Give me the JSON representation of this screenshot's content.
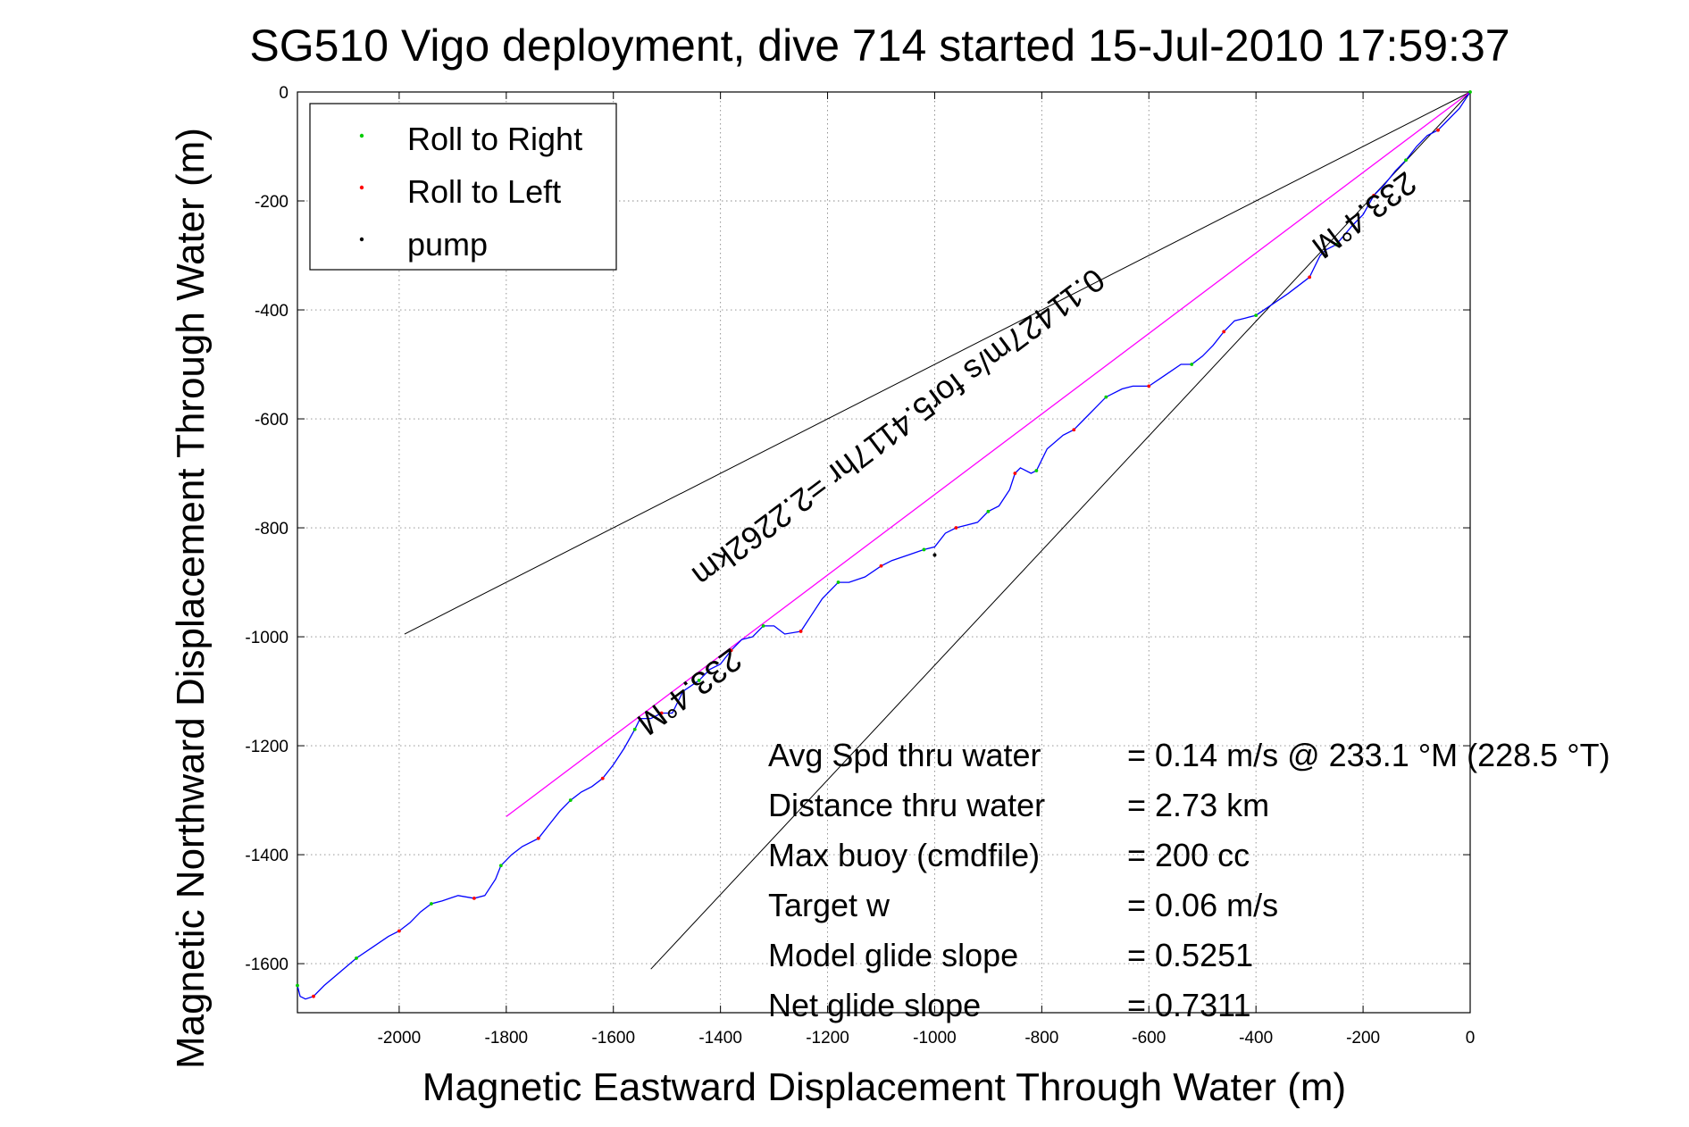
{
  "chart_data": {
    "type": "line",
    "title": "SG510 Vigo deployment, dive 714 started 15-Jul-2010 17:59:37",
    "xlabel": "Magnetic Eastward Displacement Through Water (m)",
    "ylabel": "Magnetic Northward Displacement Through Water (m)",
    "xlim": [
      -2190,
      0
    ],
    "ylim": [
      -1690,
      0
    ],
    "x_ticks": [
      "-2000",
      "-1800",
      "-1600",
      "-1400",
      "-1200",
      "-1000",
      "-800",
      "-600",
      "-400",
      "-200",
      "0"
    ],
    "y_ticks": [
      "0",
      "-200",
      "-400",
      "-600",
      "-800",
      "-1000",
      "-1200",
      "-1400",
      "-1600"
    ],
    "x_tick_values": [
      -2000,
      -1800,
      -1600,
      -1400,
      -1200,
      -1000,
      -800,
      -600,
      -400,
      -200,
      0
    ],
    "y_tick_values": [
      0,
      -200,
      -400,
      -600,
      -800,
      -1000,
      -1200,
      -1400,
      -1600
    ],
    "grid": true,
    "legend_position": "top-left",
    "legend": [
      {
        "label": "Roll to Right",
        "color": "#00cc00"
      },
      {
        "label": "Roll to Left",
        "color": "#ff0000"
      },
      {
        "label": "pump",
        "color": "#000000"
      }
    ],
    "track": {
      "color": "#0000ff",
      "x": [
        -2190,
        -2185,
        -2175,
        -2160,
        -2140,
        -2110,
        -2080,
        -2050,
        -2020,
        -2000,
        -1980,
        -1960,
        -1940,
        -1920,
        -1890,
        -1860,
        -1840,
        -1820,
        -1810,
        -1790,
        -1770,
        -1740,
        -1720,
        -1700,
        -1680,
        -1660,
        -1640,
        -1620,
        -1600,
        -1580,
        -1560,
        -1550,
        -1530,
        -1510,
        -1490,
        -1470,
        -1440,
        -1420,
        -1400,
        -1380,
        -1360,
        -1340,
        -1320,
        -1300,
        -1280,
        -1250,
        -1230,
        -1210,
        -1180,
        -1160,
        -1130,
        -1100,
        -1080,
        -1050,
        -1020,
        -1000,
        -980,
        -960,
        -940,
        -920,
        -900,
        -880,
        -860,
        -850,
        -840,
        -820,
        -810,
        -790,
        -760,
        -740,
        -720,
        -700,
        -680,
        -650,
        -630,
        -600,
        -570,
        -540,
        -520,
        -500,
        -480,
        -460,
        -440,
        -420,
        -400,
        -370,
        -340,
        -300,
        -280,
        -270,
        -250,
        -220,
        -200,
        -180,
        -160,
        -140,
        -120,
        -100,
        -80,
        -60,
        -40,
        -20,
        0
      ],
      "y": [
        -1640,
        -1660,
        -1665,
        -1660,
        -1640,
        -1615,
        -1590,
        -1570,
        -1550,
        -1540,
        -1525,
        -1505,
        -1490,
        -1485,
        -1475,
        -1480,
        -1475,
        -1445,
        -1420,
        -1400,
        -1385,
        -1370,
        -1345,
        -1320,
        -1300,
        -1285,
        -1275,
        -1260,
        -1235,
        -1205,
        -1170,
        -1150,
        -1150,
        -1140,
        -1140,
        -1100,
        -1080,
        -1060,
        -1050,
        -1025,
        -1005,
        -1000,
        -980,
        -980,
        -995,
        -990,
        -960,
        -930,
        -900,
        -900,
        -890,
        -870,
        -860,
        -850,
        -840,
        -835,
        -810,
        -800,
        -795,
        -790,
        -770,
        -760,
        -730,
        -700,
        -690,
        -700,
        -695,
        -655,
        -630,
        -620,
        -600,
        -580,
        -560,
        -545,
        -540,
        -540,
        -520,
        -500,
        -500,
        -485,
        -465,
        -440,
        -420,
        -415,
        -410,
        -390,
        -370,
        -340,
        -300,
        -290,
        -280,
        -245,
        -225,
        -190,
        -170,
        -145,
        -125,
        -100,
        -80,
        -70,
        -50,
        -30,
        0
      ]
    },
    "bearing_line": {
      "label": "233.4°M",
      "color": "#ff00ff",
      "x": [
        -1800,
        0
      ],
      "y": [
        -1330,
        0
      ]
    },
    "cone_lines": [
      {
        "x": [
          -1990,
          0
        ],
        "y": [
          -995,
          0
        ]
      },
      {
        "x": [
          -1530,
          0
        ],
        "y": [
          -1610,
          0
        ]
      }
    ],
    "annotations": [
      {
        "text": "233.4°M",
        "x": -1470,
        "y": -1085
      },
      {
        "text": "0.11427m/s for5.4117hr =2.2262km",
        "x": -1080,
        "y": -600
      },
      {
        "text": "233.4°M",
        "x": -210,
        "y": -210
      }
    ],
    "stats": [
      {
        "label": "Avg Spd thru water",
        "value": "=  0.14 m/s @ 233.1 °M (228.5 °T)"
      },
      {
        "label": "Distance thru water",
        "value": "=  2.73 km"
      },
      {
        "label": "Max buoy (cmdfile)",
        "value": "= 200 cc"
      },
      {
        "label": "Target w",
        "value": "= 0.06 m/s"
      },
      {
        "label": "Model glide slope",
        "value": "= 0.5251"
      },
      {
        "label": "Net glide slope",
        "value": "= 0.7311"
      }
    ]
  }
}
